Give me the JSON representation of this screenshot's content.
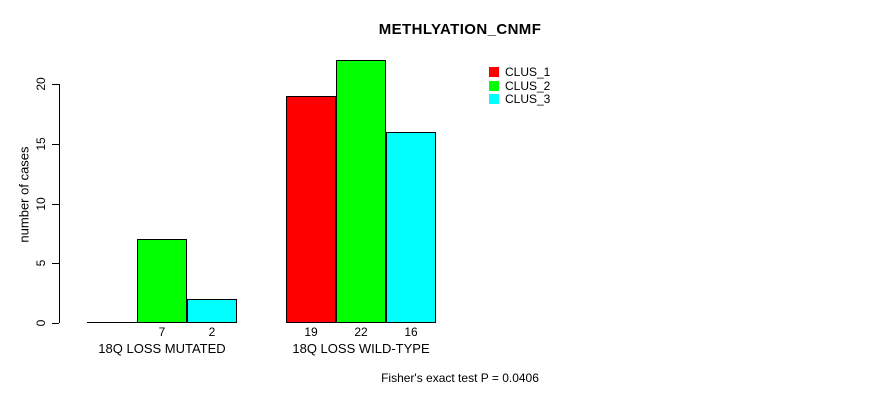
{
  "title": "METHLYATION_CNMF",
  "y_axis": {
    "label": "number of cases",
    "ticks": [
      0,
      5,
      10,
      15,
      20
    ]
  },
  "caption": "Fisher's exact test P = 0.0406",
  "legend": {
    "position": "top-right",
    "items": [
      {
        "label": "CLUS_1",
        "color": "#ff0000"
      },
      {
        "label": "CLUS_2",
        "color": "#00ff00"
      },
      {
        "label": "CLUS_3",
        "color": "#00ffff"
      }
    ]
  },
  "chart_data": {
    "type": "bar",
    "title": "METHLYATION_CNMF",
    "xlabel": "",
    "ylabel": "number of cases",
    "ylim": [
      0,
      20
    ],
    "grid": false,
    "legend_position": "top-right",
    "categories": [
      "18Q LOSS MUTATED",
      "18Q LOSS WILD-TYPE"
    ],
    "series": [
      {
        "name": "CLUS_1",
        "color": "#ff0000",
        "values": [
          0,
          19
        ]
      },
      {
        "name": "CLUS_2",
        "color": "#00ff00",
        "values": [
          7,
          22
        ]
      },
      {
        "name": "CLUS_3",
        "color": "#00ffff",
        "values": [
          2,
          16
        ]
      }
    ],
    "bar_value_labels_shown": true,
    "zero_bars_shown_as_baseline": true,
    "annotation": "Fisher's exact test P = 0.0406"
  }
}
